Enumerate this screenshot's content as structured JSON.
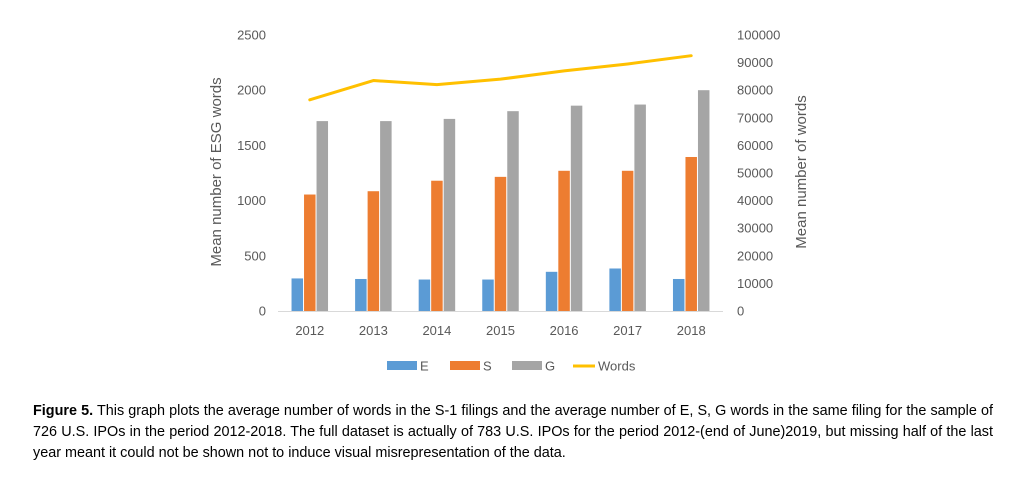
{
  "chart_data": {
    "type": "bar",
    "categories": [
      "2012",
      "2013",
      "2014",
      "2015",
      "2016",
      "2017",
      "2018"
    ],
    "series": [
      {
        "name": "E",
        "kind": "bar",
        "axis": "left",
        "color": "#5b9bd5",
        "values": [
          295,
          290,
          285,
          285,
          355,
          385,
          290
        ]
      },
      {
        "name": "S",
        "kind": "bar",
        "axis": "left",
        "color": "#ed7d31",
        "values": [
          1055,
          1085,
          1180,
          1215,
          1270,
          1270,
          1395
        ]
      },
      {
        "name": "G",
        "kind": "bar",
        "axis": "left",
        "color": "#a5a5a5",
        "values": [
          1720,
          1720,
          1740,
          1810,
          1860,
          1870,
          2000
        ]
      },
      {
        "name": "Words",
        "kind": "line",
        "axis": "right",
        "color": "#ffc000",
        "values": [
          76500,
          83500,
          82000,
          84000,
          87000,
          89500,
          92500
        ]
      }
    ],
    "ylabel": "Mean number of ESG words",
    "y2label": "Mean number of words",
    "ylim": [
      0,
      2500
    ],
    "y2lim": [
      0,
      100000
    ],
    "yticks": [
      "0",
      "500",
      "1000",
      "1500",
      "2000",
      "2500"
    ],
    "y2ticks": [
      "0",
      "10000",
      "20000",
      "30000",
      "40000",
      "50000",
      "60000",
      "70000",
      "80000",
      "90000",
      "100000"
    ],
    "grid": false,
    "legend_position": "bottom"
  },
  "caption": {
    "label": "Figure 5.",
    "text": " This graph plots the average number of words in the S-1 filings and the average number of E, S, G words in the same filing for the sample of 726 U.S. IPOs in the period 2012-2018. The full dataset is actually of 783 U.S. IPOs for the period 2012-(end of June)2019, but missing half of the last year meant it could not be shown not to induce visual misrepresentation of the data."
  }
}
